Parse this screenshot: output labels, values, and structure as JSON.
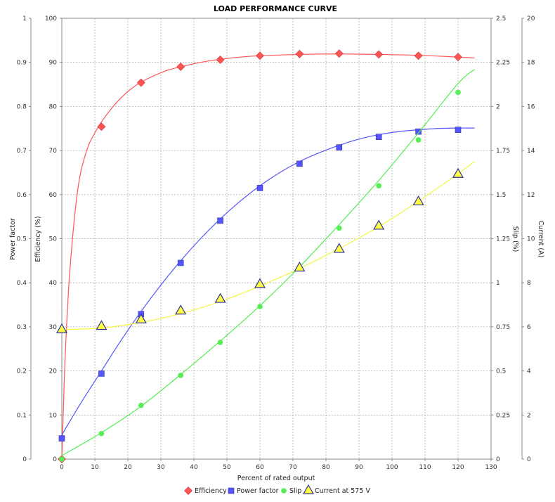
{
  "chart_data": {
    "type": "line",
    "title": "LOAD PERFORMANCE CURVE",
    "xlabel": "Percent of rated output",
    "xlim": [
      0,
      130
    ],
    "x_ticks": [
      0,
      10,
      20,
      30,
      40,
      50,
      60,
      70,
      80,
      90,
      100,
      110,
      120,
      130
    ],
    "grid": true,
    "legend_placement": "bottom",
    "axes": {
      "power_factor": {
        "label": "Power factor",
        "side": "left-outer",
        "lim": [
          0,
          1
        ],
        "ticks": [
          "0",
          "0.1",
          "0.2",
          "0.3",
          "0.4",
          "0.5",
          "0.6",
          "0.7",
          "0.8",
          "0.9",
          "1"
        ]
      },
      "efficiency": {
        "label": "Efficiency (%)",
        "side": "left-inner",
        "lim": [
          0,
          100
        ],
        "ticks": [
          "0",
          "10",
          "20",
          "30",
          "40",
          "50",
          "60",
          "70",
          "80",
          "90",
          "100"
        ]
      },
      "slip": {
        "label": "Slip (%)",
        "side": "right-inner",
        "lim": [
          0,
          2.5
        ],
        "ticks": [
          "0",
          "0.25",
          "0.5",
          "0.75",
          "1",
          "1.25",
          "1.5",
          "1.75",
          "2",
          "2.25",
          "2.5"
        ]
      },
      "current": {
        "label": "Current (A)",
        "side": "right-outer",
        "lim": [
          0,
          20
        ],
        "ticks": [
          "0",
          "2",
          "4",
          "6",
          "8",
          "10",
          "12",
          "14",
          "16",
          "18",
          "20"
        ]
      }
    },
    "series": [
      {
        "name": "Efficiency",
        "axis": "efficiency",
        "color": "#ff5555",
        "marker": "diamond",
        "points": [
          [
            0,
            0
          ],
          [
            12,
            75.4
          ],
          [
            24,
            85.4
          ],
          [
            36,
            89
          ],
          [
            48,
            90.6
          ],
          [
            60,
            91.5
          ],
          [
            72,
            91.9
          ],
          [
            84,
            92
          ],
          [
            96,
            91.8
          ],
          [
            108,
            91.5
          ],
          [
            120,
            91.2
          ]
        ],
        "curve": [
          [
            0,
            0
          ],
          [
            0.5,
            12
          ],
          [
            1,
            23
          ],
          [
            2,
            38
          ],
          [
            3,
            48
          ],
          [
            4,
            56
          ],
          [
            5,
            62
          ],
          [
            6,
            66
          ],
          [
            8,
            71
          ],
          [
            10,
            74
          ],
          [
            12,
            76.5
          ],
          [
            15,
            79.5
          ],
          [
            18,
            82
          ],
          [
            21,
            84
          ],
          [
            24,
            85.5
          ],
          [
            28,
            87
          ],
          [
            32,
            88.2
          ],
          [
            36,
            89
          ],
          [
            42,
            90
          ],
          [
            48,
            90.7
          ],
          [
            54,
            91.2
          ],
          [
            60,
            91.5
          ],
          [
            72,
            91.8
          ],
          [
            84,
            91.9
          ],
          [
            96,
            91.8
          ],
          [
            108,
            91.6
          ],
          [
            120,
            91.2
          ],
          [
            125,
            91
          ]
        ]
      },
      {
        "name": "Power factor",
        "axis": "power_factor",
        "color": "#5555ff",
        "marker": "square",
        "points": [
          [
            0,
            0.047
          ],
          [
            12,
            0.194
          ],
          [
            24,
            0.329
          ],
          [
            36,
            0.445
          ],
          [
            48,
            0.541
          ],
          [
            60,
            0.615
          ],
          [
            72,
            0.67
          ],
          [
            84,
            0.707
          ],
          [
            96,
            0.731
          ],
          [
            108,
            0.743
          ],
          [
            120,
            0.747
          ]
        ],
        "curve": [
          [
            0,
            0.055
          ],
          [
            6,
            0.13
          ],
          [
            12,
            0.2
          ],
          [
            18,
            0.27
          ],
          [
            24,
            0.335
          ],
          [
            30,
            0.395
          ],
          [
            36,
            0.45
          ],
          [
            42,
            0.5
          ],
          [
            48,
            0.545
          ],
          [
            54,
            0.585
          ],
          [
            60,
            0.62
          ],
          [
            66,
            0.65
          ],
          [
            72,
            0.675
          ],
          [
            78,
            0.695
          ],
          [
            84,
            0.712
          ],
          [
            90,
            0.726
          ],
          [
            96,
            0.736
          ],
          [
            102,
            0.743
          ],
          [
            108,
            0.747
          ],
          [
            114,
            0.75
          ],
          [
            120,
            0.751
          ],
          [
            125,
            0.751
          ]
        ]
      },
      {
        "name": "Slip",
        "axis": "slip",
        "color": "#55ee55",
        "marker": "circle",
        "points": [
          [
            0,
            0
          ],
          [
            12,
            0.145
          ],
          [
            24,
            0.305
          ],
          [
            36,
            0.475
          ],
          [
            48,
            0.662
          ],
          [
            60,
            0.865
          ],
          [
            72,
            1.085
          ],
          [
            84,
            1.31
          ],
          [
            96,
            1.55
          ],
          [
            108,
            1.81
          ],
          [
            120,
            2.08
          ]
        ],
        "curve": [
          [
            0,
            0.02
          ],
          [
            12,
            0.15
          ],
          [
            24,
            0.3
          ],
          [
            36,
            0.48
          ],
          [
            48,
            0.67
          ],
          [
            60,
            0.87
          ],
          [
            72,
            1.09
          ],
          [
            84,
            1.33
          ],
          [
            96,
            1.58
          ],
          [
            108,
            1.85
          ],
          [
            120,
            2.13
          ],
          [
            125,
            2.21
          ]
        ]
      },
      {
        "name": "Current at 575 V",
        "axis": "current",
        "color": "#ffff44",
        "marker": "triangle",
        "points": [
          [
            0,
            5.9
          ],
          [
            12,
            6.05
          ],
          [
            24,
            6.35
          ],
          [
            36,
            6.75
          ],
          [
            48,
            7.28
          ],
          [
            60,
            7.95
          ],
          [
            72,
            8.7
          ],
          [
            84,
            9.55
          ],
          [
            96,
            10.6
          ],
          [
            108,
            11.7
          ],
          [
            120,
            12.95
          ]
        ],
        "curve": [
          [
            0,
            5.88
          ],
          [
            12,
            5.95
          ],
          [
            24,
            6.2
          ],
          [
            36,
            6.6
          ],
          [
            48,
            7.15
          ],
          [
            60,
            7.85
          ],
          [
            72,
            8.65
          ],
          [
            84,
            9.55
          ],
          [
            96,
            10.55
          ],
          [
            108,
            11.7
          ],
          [
            120,
            12.95
          ],
          [
            125,
            13.5
          ]
        ]
      }
    ]
  }
}
